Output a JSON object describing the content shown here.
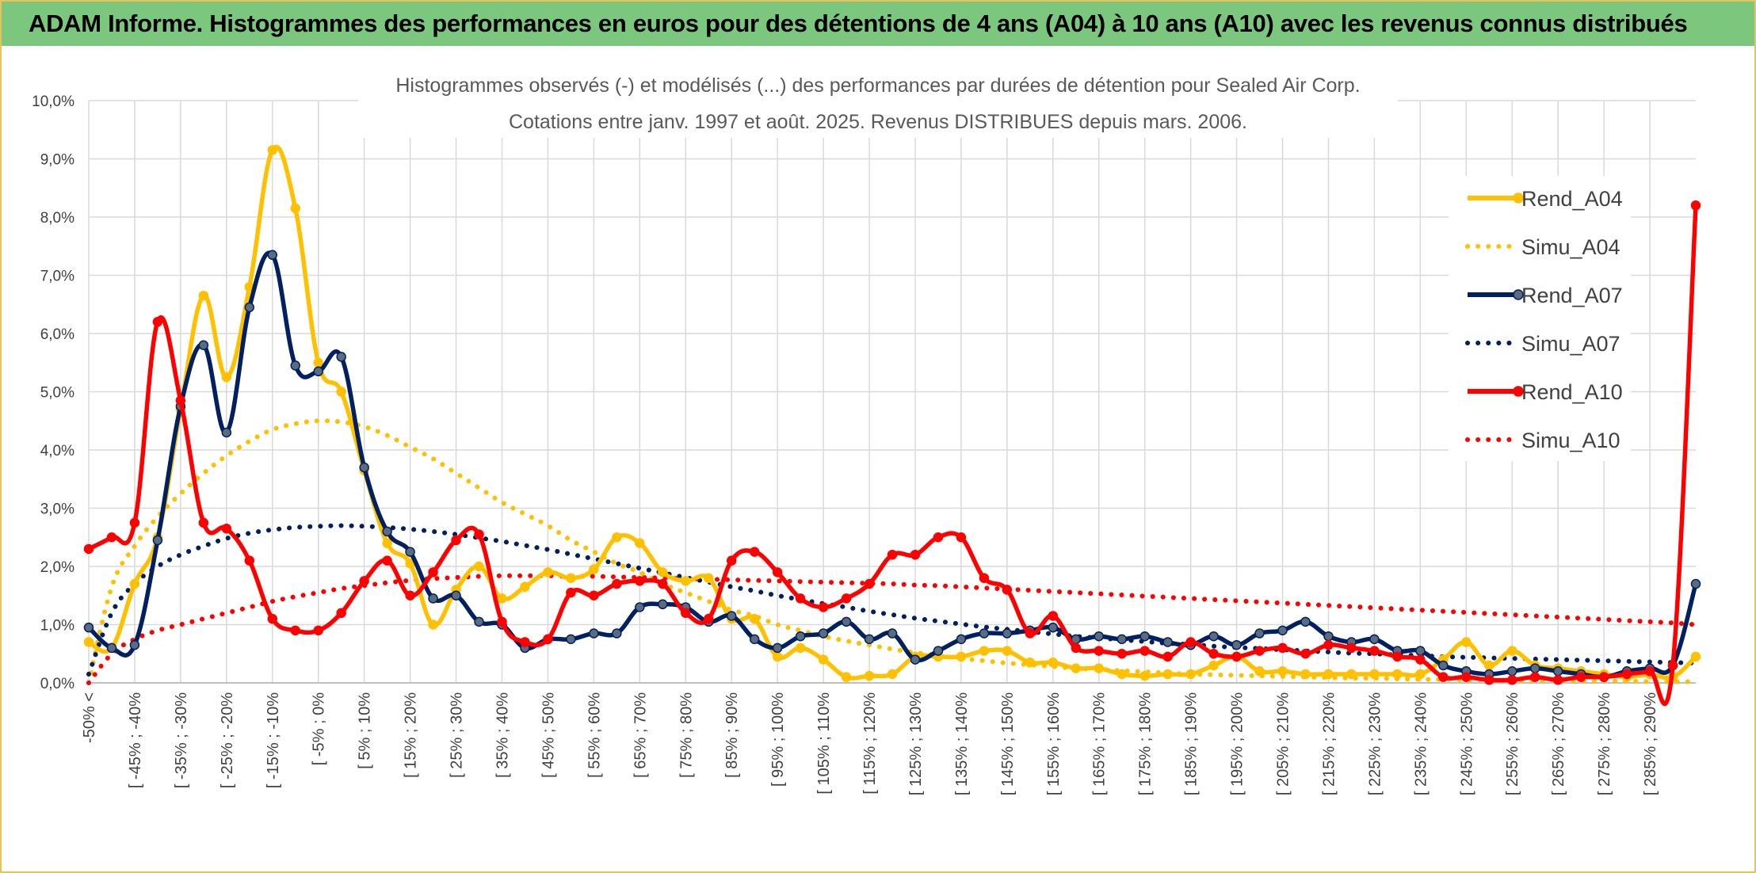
{
  "header": {
    "title": "ADAM Informe. Histogrammes des performances en euros pour des détentions de 4 ans (A04) à 10 ans (A10) avec les revenus connus distribués"
  },
  "chart_data": {
    "type": "line",
    "title": "Histogrammes observés (-) et modélisés (...) des performances par durées de détention pour Sealed Air Corp.",
    "subtitle": "Cotations entre janv. 1997 et août. 2025. Revenus DISTRIBUES depuis mars. 2006.",
    "xlabel": "",
    "ylabel": "",
    "ylim": [
      0,
      10
    ],
    "y_ticks": [
      "0,0%",
      "1,0%",
      "2,0%",
      "3,0%",
      "4,0%",
      "5,0%",
      "6,0%",
      "7,0%",
      "8,0%",
      "9,0%",
      "10,0%"
    ],
    "grid": true,
    "legend_position": "right",
    "x_tick_labels": [
      "-50% <",
      "[ -45% ; -40%",
      "[ -35% ; -30%",
      "[ -25% ; -20%",
      "[ -15% ; -10%",
      "[ -5% ; 0%",
      "[ 5% ; 10%",
      "[ 15% ; 20%",
      "[ 25% ; 30%",
      "[ 35% ; 40%",
      "[ 45% ; 50%",
      "[ 55% ; 60%",
      "[ 65% ; 70%",
      "[ 75% ; 80%",
      "[ 85% ; 90%",
      "[ 95% ; 100%",
      "[ 105% ; 110%",
      "[ 115% ; 120%",
      "[ 125% ; 130%",
      "[ 135% ; 140%",
      "[ 145% ; 150%",
      "[ 155% ; 160%",
      "[ 165% ; 170%",
      "[ 175% ; 180%",
      "[ 185% ; 190%",
      "[ 195% ; 200%",
      "[ 205% ; 210%",
      "[ 215% ; 220%",
      "[ 225% ; 230%",
      "[ 235% ; 240%",
      "[ 245% ; 250%",
      "[ 255% ; 260%",
      "[ 265% ; 270%",
      "[ 275% ; 280%",
      "[ 285% ; 290%"
    ],
    "series": [
      {
        "name": "Rend_A04",
        "color": "#ffc000",
        "style": "solid",
        "markers": true,
        "values": [
          0.7,
          0.6,
          1.7,
          2.5,
          4.7,
          6.65,
          5.25,
          6.8,
          9.15,
          8.15,
          5.5,
          5.0,
          3.65,
          2.4,
          2.05,
          1.0,
          1.6,
          2.0,
          1.45,
          1.65,
          1.9,
          1.8,
          1.95,
          2.5,
          2.4,
          1.9,
          1.75,
          1.8,
          1.1,
          1.1,
          0.45,
          0.6,
          0.4,
          0.1,
          0.12,
          0.15,
          0.45,
          0.45,
          0.45,
          0.55,
          0.55,
          0.35,
          0.35,
          0.25,
          0.25,
          0.15,
          0.12,
          0.15,
          0.15,
          0.3,
          0.45,
          0.2,
          0.2,
          0.15,
          0.15,
          0.15,
          0.15,
          0.15,
          0.15,
          0.4,
          0.7,
          0.3,
          0.55,
          0.3,
          0.25,
          0.2,
          0.15,
          0.1,
          0.15,
          0.1,
          0.45
        ]
      },
      {
        "name": "Simu_A04",
        "color": "#ffc000",
        "style": "dotted",
        "markers": false,
        "values": [
          0.0,
          1.65,
          2.35,
          2.85,
          3.25,
          3.6,
          3.9,
          4.15,
          4.35,
          4.45,
          4.5,
          4.48,
          4.4,
          4.25,
          4.05,
          3.85,
          3.6,
          3.35,
          3.1,
          2.9,
          2.7,
          2.45,
          2.25,
          2.05,
          1.9,
          1.7,
          1.55,
          1.4,
          1.25,
          1.15,
          1.0,
          0.9,
          0.8,
          0.72,
          0.65,
          0.58,
          0.52,
          0.47,
          0.42,
          0.38,
          0.34,
          0.31,
          0.28,
          0.25,
          0.23,
          0.21,
          0.19,
          0.17,
          0.15,
          0.14,
          0.13,
          0.12,
          0.11,
          0.1,
          0.09,
          0.08,
          0.08,
          0.07,
          0.06,
          0.06,
          0.05,
          0.05,
          0.04,
          0.04,
          0.04,
          0.03,
          0.03,
          0.03,
          0.02,
          0.02,
          0.02
        ]
      },
      {
        "name": "Rend_A07",
        "color": "#002060",
        "style": "solid",
        "markers": true,
        "values": [
          0.95,
          0.6,
          0.65,
          2.45,
          4.75,
          5.8,
          4.3,
          6.45,
          7.35,
          5.45,
          5.35,
          5.6,
          3.7,
          2.6,
          2.25,
          1.45,
          1.5,
          1.05,
          1.0,
          0.6,
          0.75,
          0.75,
          0.85,
          0.85,
          1.3,
          1.35,
          1.3,
          1.05,
          1.15,
          0.75,
          0.6,
          0.8,
          0.85,
          1.05,
          0.75,
          0.85,
          0.4,
          0.55,
          0.75,
          0.85,
          0.85,
          0.9,
          0.95,
          0.75,
          0.8,
          0.75,
          0.8,
          0.7,
          0.65,
          0.8,
          0.65,
          0.85,
          0.9,
          1.05,
          0.8,
          0.7,
          0.75,
          0.55,
          0.55,
          0.3,
          0.2,
          0.15,
          0.2,
          0.25,
          0.2,
          0.15,
          0.1,
          0.2,
          0.25,
          0.3,
          1.7
        ]
      },
      {
        "name": "Simu_A07",
        "color": "#002060",
        "style": "dotted",
        "markers": false,
        "values": [
          0.15,
          1.2,
          1.7,
          2.0,
          2.2,
          2.35,
          2.48,
          2.57,
          2.63,
          2.67,
          2.69,
          2.7,
          2.69,
          2.67,
          2.64,
          2.6,
          2.55,
          2.49,
          2.43,
          2.36,
          2.29,
          2.21,
          2.13,
          2.05,
          1.97,
          1.89,
          1.81,
          1.73,
          1.65,
          1.58,
          1.5,
          1.43,
          1.36,
          1.3,
          1.23,
          1.17,
          1.11,
          1.06,
          1.01,
          0.96,
          0.92,
          0.88,
          0.84,
          0.8,
          0.77,
          0.74,
          0.71,
          0.68,
          0.66,
          0.63,
          0.61,
          0.59,
          0.57,
          0.55,
          0.53,
          0.51,
          0.5,
          0.48,
          0.47,
          0.45,
          0.44,
          0.43,
          0.42,
          0.41,
          0.4,
          0.39,
          0.38,
          0.37,
          0.36,
          0.35,
          0.34
        ]
      },
      {
        "name": "Rend_A10",
        "color": "#ff0000",
        "style": "solid",
        "markers": true,
        "values": [
          2.3,
          2.5,
          2.75,
          6.2,
          4.85,
          2.75,
          2.65,
          2.1,
          1.1,
          0.9,
          0.9,
          1.2,
          1.75,
          2.1,
          1.5,
          1.9,
          2.45,
          2.55,
          1.05,
          0.7,
          0.75,
          1.55,
          1.5,
          1.7,
          1.75,
          1.7,
          1.2,
          1.1,
          2.1,
          2.25,
          1.9,
          1.45,
          1.3,
          1.45,
          1.7,
          2.2,
          2.2,
          2.5,
          2.5,
          1.8,
          1.6,
          0.85,
          1.15,
          0.6,
          0.55,
          0.5,
          0.55,
          0.45,
          0.7,
          0.5,
          0.45,
          0.55,
          0.6,
          0.5,
          0.65,
          0.6,
          0.55,
          0.45,
          0.4,
          0.1,
          0.1,
          0.05,
          0.05,
          0.1,
          0.05,
          0.1,
          0.1,
          0.15,
          0.2,
          0.3,
          8.2
        ]
      },
      {
        "name": "Simu_A10",
        "color": "#ff0000",
        "style": "dotted",
        "markers": false,
        "values": [
          0.0,
          0.5,
          0.75,
          0.9,
          1.0,
          1.1,
          1.2,
          1.3,
          1.4,
          1.48,
          1.55,
          1.62,
          1.67,
          1.72,
          1.76,
          1.79,
          1.81,
          1.83,
          1.84,
          1.84,
          1.84,
          1.83,
          1.83,
          1.82,
          1.81,
          1.8,
          1.79,
          1.78,
          1.77,
          1.76,
          1.75,
          1.74,
          1.73,
          1.72,
          1.71,
          1.7,
          1.68,
          1.67,
          1.65,
          1.63,
          1.61,
          1.59,
          1.57,
          1.55,
          1.53,
          1.51,
          1.49,
          1.47,
          1.45,
          1.43,
          1.41,
          1.39,
          1.37,
          1.35,
          1.33,
          1.31,
          1.29,
          1.27,
          1.25,
          1.23,
          1.21,
          1.19,
          1.17,
          1.15,
          1.13,
          1.11,
          1.09,
          1.07,
          1.05,
          1.03,
          1.0
        ]
      }
    ]
  }
}
